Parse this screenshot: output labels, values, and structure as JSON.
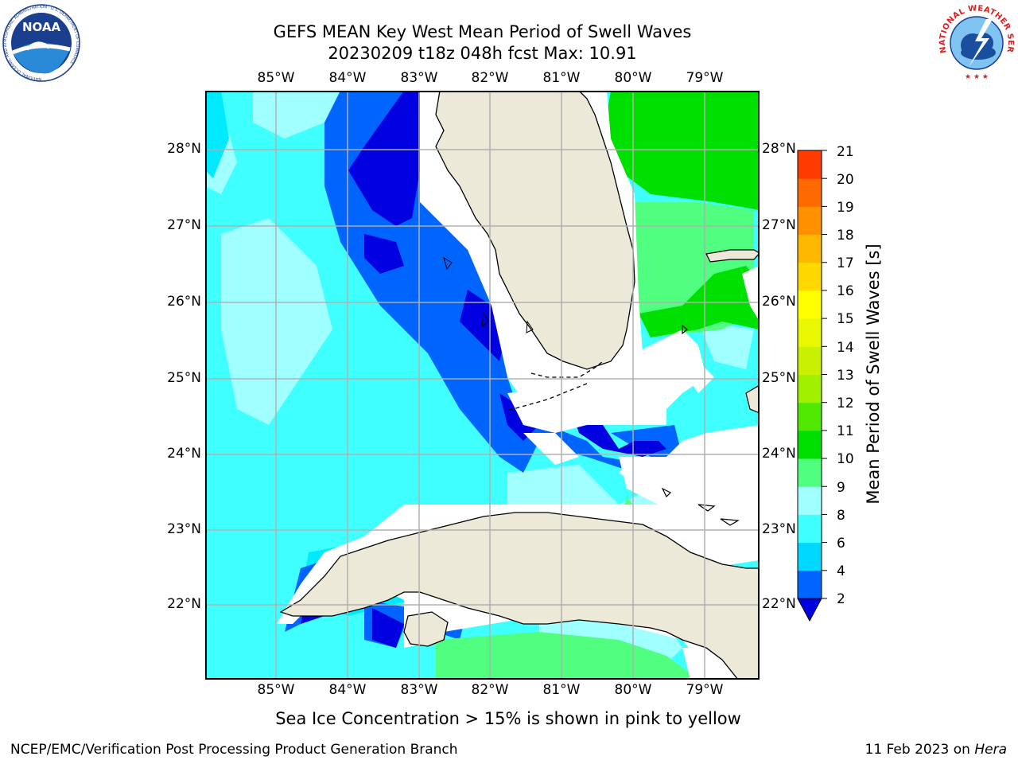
{
  "title": {
    "line1": "GEFS MEAN Key West Mean Period of Swell Waves",
    "line2": "20230209 t18z 048h fcst   Max: 10.91"
  },
  "map": {
    "lon_labels": [
      "85°W",
      "84°W",
      "83°W",
      "82°W",
      "81°W",
      "80°W",
      "79°W"
    ],
    "lat_labels": [
      "28°N",
      "27°N",
      "26°N",
      "25°N",
      "24°N",
      "23°N",
      "22°N"
    ],
    "colors": {
      "land": "#ece9d9",
      "no_data": "#ffffff",
      "grid": "#b0b0b0"
    }
  },
  "colorbar": {
    "label": "Mean Period of Swell Waves [s]",
    "tick_labels": [
      "2",
      "4",
      "6",
      "8",
      "9",
      "10",
      "11",
      "12",
      "13",
      "14",
      "15",
      "16",
      "17",
      "18",
      "19",
      "20",
      "21"
    ],
    "colors": [
      "#0064ff",
      "#00d8ff",
      "#40ffff",
      "#a0ffff",
      "#50ff80",
      "#00e000",
      "#50e800",
      "#a0f000",
      "#c8f000",
      "#e8f800",
      "#ffff00",
      "#ffd800",
      "#ffb800",
      "#ff9000",
      "#ff6a00",
      "#ff3c00",
      "#ff0000"
    ],
    "under_color": "#0000e0"
  },
  "notes": {
    "sea_ice": "Sea Ice Concentration > 15% is shown in pink to yellow"
  },
  "footer": {
    "left": "NCEP/EMC/Verification Post Processing Product Generation Branch",
    "date": "11 Feb 2023 on ",
    "machine": "Hera"
  },
  "logos": {
    "noaa_text": "NOAA",
    "noaa_ring": "NATIONAL OCEANIC AND ATMOSPHERIC ADMINISTRATION · U.S. DEPARTMENT OF COMMERCE",
    "nws_ring": "NATIONAL WEATHER SERVICE"
  }
}
